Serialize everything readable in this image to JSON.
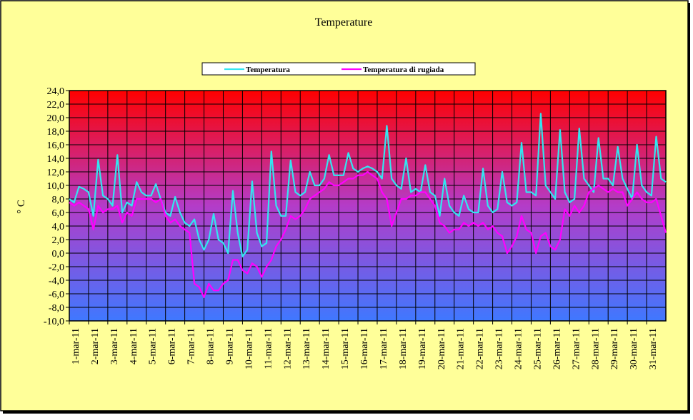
{
  "chart_data": {
    "type": "line",
    "title": "Temperature",
    "ylabel": "° C",
    "xlim": [
      1,
      32
    ],
    "xticks": [
      {
        "value": 1,
        "label": "1-mar-11"
      },
      {
        "value": 2,
        "label": "2-mar-11"
      },
      {
        "value": 3,
        "label": "3-mar-11"
      },
      {
        "value": 4,
        "label": "4-mar-11"
      },
      {
        "value": 5,
        "label": "5-mar-11"
      },
      {
        "value": 6,
        "label": "6-mar-11"
      },
      {
        "value": 7,
        "label": "7-mar-11"
      },
      {
        "value": 8,
        "label": "8-mar-11"
      },
      {
        "value": 9,
        "label": "9-mar-11"
      },
      {
        "value": 10,
        "label": "10-mar-11"
      },
      {
        "value": 11,
        "label": "11-mar-11"
      },
      {
        "value": 12,
        "label": "12-mar-11"
      },
      {
        "value": 13,
        "label": "13-mar-11"
      },
      {
        "value": 14,
        "label": "14-mar-11"
      },
      {
        "value": 15,
        "label": "15-mar-11"
      },
      {
        "value": 16,
        "label": "16-mar-11"
      },
      {
        "value": 17,
        "label": "17-mar-11"
      },
      {
        "value": 18,
        "label": "18-mar-11"
      },
      {
        "value": 19,
        "label": "19-mar-11"
      },
      {
        "value": 20,
        "label": "20-mar-11"
      },
      {
        "value": 21,
        "label": "21-mar-11"
      },
      {
        "value": 22,
        "label": "22-mar-11"
      },
      {
        "value": 23,
        "label": "23-mar-11"
      },
      {
        "value": 24,
        "label": "24-mar-11"
      },
      {
        "value": 25,
        "label": "25-mar-11"
      },
      {
        "value": 26,
        "label": "26-mar-11"
      },
      {
        "value": 27,
        "label": "27-mar-11"
      },
      {
        "value": 28,
        "label": "28-mar-11"
      },
      {
        "value": 29,
        "label": "29-mar-11"
      },
      {
        "value": 30,
        "label": "30-mar-11"
      },
      {
        "value": 31,
        "label": "31-mar-11"
      }
    ],
    "ylim": [
      -10,
      24
    ],
    "yticks": [
      {
        "value": -10,
        "label": "-10,0"
      },
      {
        "value": -8,
        "label": "-8,0"
      },
      {
        "value": -6,
        "label": "-6,0"
      },
      {
        "value": -4,
        "label": "-4,0"
      },
      {
        "value": -2,
        "label": "-2,0"
      },
      {
        "value": 0,
        "label": "0,0"
      },
      {
        "value": 2,
        "label": "2,0"
      },
      {
        "value": 4,
        "label": "4,0"
      },
      {
        "value": 6,
        "label": "6,0"
      },
      {
        "value": 8,
        "label": "8,0"
      },
      {
        "value": 10,
        "label": "10,0"
      },
      {
        "value": 12,
        "label": "12,0"
      },
      {
        "value": 14,
        "label": "14,0"
      },
      {
        "value": 16,
        "label": "16,0"
      },
      {
        "value": 18,
        "label": "18,0"
      },
      {
        "value": 20,
        "label": "20,0"
      },
      {
        "value": 22,
        "label": "22,0"
      },
      {
        "value": 24,
        "label": "24,0"
      }
    ],
    "grid": true,
    "x": [
      1,
      1.25,
      1.5,
      1.75,
      2,
      2.25,
      2.5,
      2.75,
      3,
      3.25,
      3.5,
      3.75,
      4,
      4.25,
      4.5,
      4.75,
      5,
      5.25,
      5.5,
      5.75,
      6,
      6.25,
      6.5,
      6.75,
      7,
      7.25,
      7.5,
      7.75,
      8,
      8.25,
      8.5,
      8.75,
      9,
      9.25,
      9.5,
      9.75,
      10,
      10.25,
      10.5,
      10.75,
      11,
      11.25,
      11.5,
      11.75,
      12,
      12.25,
      12.5,
      12.75,
      13,
      13.25,
      13.5,
      13.75,
      14,
      14.25,
      14.5,
      14.75,
      15,
      15.25,
      15.5,
      15.75,
      16,
      16.25,
      16.5,
      16.75,
      17,
      17.25,
      17.5,
      17.75,
      18,
      18.25,
      18.5,
      18.75,
      19,
      19.25,
      19.5,
      19.75,
      20,
      20.25,
      20.5,
      20.75,
      21,
      21.25,
      21.5,
      21.75,
      22,
      22.25,
      22.5,
      22.75,
      23,
      23.25,
      23.5,
      23.75,
      24,
      24.25,
      24.5,
      24.75,
      25,
      25.25,
      25.5,
      25.75,
      26,
      26.25,
      26.5,
      26.75,
      27,
      27.25,
      27.5,
      27.75,
      28,
      28.25,
      28.5,
      28.75,
      29,
      29.25,
      29.5,
      29.75,
      30,
      30.25,
      30.5,
      30.75,
      31,
      31.25,
      31.5,
      31.75,
      32
    ],
    "series": [
      {
        "name": "Temperatura",
        "color": "#33e6f0",
        "values": [
          8,
          7.5,
          9.8,
          9.5,
          9,
          5.5,
          13.8,
          8.5,
          8,
          7,
          14.5,
          6,
          7.5,
          7,
          10.5,
          9,
          8.5,
          8.5,
          10.2,
          8,
          6,
          5.5,
          8.3,
          6,
          4.5,
          4,
          5,
          2,
          0.5,
          2,
          5.8,
          2,
          1.5,
          0,
          9.2,
          3,
          -0.5,
          0.5,
          10.6,
          3,
          1,
          1.5,
          15,
          7,
          5.5,
          5.5,
          13.7,
          9,
          8.5,
          9,
          12,
          10,
          10,
          11,
          14.5,
          11.5,
          11.5,
          11.5,
          14.8,
          12.5,
          12,
          12.5,
          12.8,
          12.5,
          12,
          11,
          18.8,
          11,
          10,
          9.5,
          14,
          9,
          9.5,
          9,
          13,
          9,
          8.5,
          5.5,
          11,
          7,
          6,
          5.5,
          8.5,
          6.5,
          6,
          6,
          12.5,
          7,
          6,
          6.5,
          12,
          7.5,
          7,
          7.5,
          16.3,
          9,
          9,
          8.5,
          20.6,
          10,
          9,
          8,
          18.2,
          9,
          7.5,
          8,
          18.4,
          11,
          10,
          9,
          17,
          11,
          11,
          10,
          15.7,
          11,
          9.5,
          8,
          16,
          10,
          9,
          8.5,
          17.2,
          11,
          10.5
        ]
      },
      {
        "name": "Temperatura di rugiada",
        "color": "#ff00ff",
        "values": [
          7.5,
          7,
          7.5,
          7,
          6.5,
          3.5,
          7,
          6,
          6.5,
          6.5,
          7,
          4.5,
          6,
          5.5,
          8,
          8,
          8,
          8,
          7.5,
          8,
          5.5,
          4.5,
          5,
          4,
          3.5,
          3,
          -4.5,
          -5,
          -6.5,
          -4.5,
          -5.5,
          -5.5,
          -4.5,
          -4,
          -1,
          -1,
          -2.5,
          -3,
          -1.5,
          -2,
          -3.5,
          -2,
          -1,
          1,
          2,
          3.5,
          5.5,
          5,
          5.5,
          6.5,
          8,
          8.5,
          9,
          9.5,
          10.5,
          10,
          10,
          10.5,
          11,
          11,
          11.5,
          11.5,
          12,
          11.5,
          11,
          9,
          8,
          4,
          6,
          8,
          8,
          8.5,
          8.5,
          9,
          9,
          8,
          7,
          4.5,
          4,
          3,
          3.5,
          3.5,
          4.5,
          4,
          4.5,
          4,
          4.5,
          3.5,
          4,
          3,
          2.5,
          0,
          1,
          2.5,
          5.5,
          3.5,
          3,
          0,
          2.5,
          3,
          1,
          0.5,
          2,
          6.5,
          5.5,
          7,
          6,
          7,
          9,
          9.5,
          10,
          9.5,
          9,
          9.5,
          9,
          9,
          7,
          8,
          9,
          8,
          7.5,
          7.5,
          8,
          5.5,
          3
        ]
      }
    ]
  }
}
